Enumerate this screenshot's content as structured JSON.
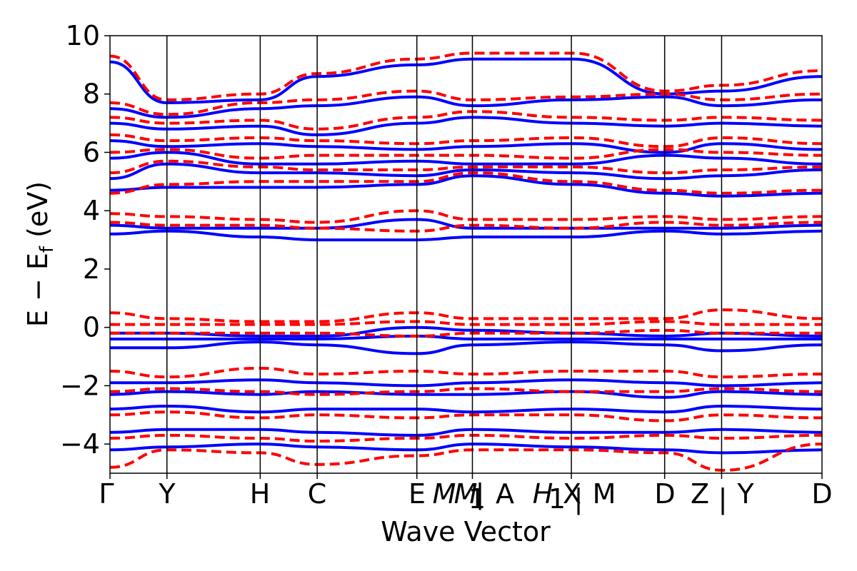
{
  "chart_data": {
    "type": "line",
    "title": "",
    "xlabel": "Wave Vector",
    "ylabel": "E − E_f (eV)",
    "ylabel_parts": {
      "main": "E − E",
      "sub": "f",
      "unit": " (eV)"
    },
    "ylim": [
      -5,
      10
    ],
    "yticks": [
      -4,
      -2,
      0,
      2,
      4,
      6,
      8,
      10
    ],
    "ytick_labels": [
      "−4",
      "−2",
      "0",
      "2",
      "4",
      "6",
      "8",
      "10"
    ],
    "grid": false,
    "legend": "none",
    "colors": {
      "spin_up": "#0000ff",
      "spin_down": "#ff0000"
    },
    "high_symmetry_points": [
      {
        "label": "Γ",
        "x": 0.0
      },
      {
        "label": "Y",
        "x": 0.08
      },
      {
        "label": "H",
        "x": 0.211
      },
      {
        "label": "C",
        "x": 0.291
      },
      {
        "label": "E",
        "x": 0.431
      },
      {
        "label": "M₁|A",
        "x": 0.509
      },
      {
        "label": "H₁",
        "x": 0.648
      },
      {
        "label": "X|M",
        "x": 0.648
      },
      {
        "label": "D",
        "x": 0.779
      },
      {
        "label": "Z|Y",
        "x": 0.859
      },
      {
        "label": "D",
        "x": 1.0
      }
    ],
    "xtick_labels_visible": [
      "Γ",
      "Y",
      "H",
      "C",
      "E",
      "M",
      "M",
      "1",
      "|",
      "A",
      "H",
      "1",
      "X",
      "|",
      "M",
      "D",
      "Z",
      "|",
      "Y",
      "D"
    ],
    "series": [
      {
        "style": "solid",
        "color": "#0000ff",
        "bands": [
          {
            "x": [
              0,
              0.08,
              0.21,
              0.29,
              0.43,
              0.51,
              0.65,
              0.78,
              0.86,
              1.0
            ],
            "y": [
              -4.2,
              -4.1,
              -4.0,
              -4.1,
              -4.2,
              -4.0,
              -4.1,
              -4.2,
              -4.3,
              -4.2
            ]
          },
          {
            "x": [
              0,
              0.08,
              0.21,
              0.29,
              0.43,
              0.51,
              0.65,
              0.78,
              0.86,
              1.0
            ],
            "y": [
              -3.6,
              -3.5,
              -3.5,
              -3.6,
              -3.7,
              -3.5,
              -3.6,
              -3.6,
              -3.5,
              -3.6
            ]
          },
          {
            "x": [
              0,
              0.08,
              0.21,
              0.29,
              0.43,
              0.51,
              0.65,
              0.78,
              0.86,
              1.0
            ],
            "y": [
              -2.8,
              -2.7,
              -2.9,
              -2.8,
              -2.8,
              -2.9,
              -2.8,
              -2.9,
              -2.7,
              -2.8
            ]
          },
          {
            "x": [
              0,
              0.08,
              0.21,
              0.29,
              0.43,
              0.51,
              0.65,
              0.78,
              0.86,
              1.0
            ],
            "y": [
              -2.3,
              -2.2,
              -2.3,
              -2.2,
              -2.3,
              -2.3,
              -2.2,
              -2.4,
              -2.2,
              -2.3
            ]
          },
          {
            "x": [
              0,
              0.08,
              0.21,
              0.29,
              0.43,
              0.51,
              0.65,
              0.78,
              0.86,
              1.0
            ],
            "y": [
              -1.9,
              -1.9,
              -1.8,
              -1.9,
              -2.0,
              -1.9,
              -1.8,
              -1.9,
              -2.0,
              -1.9
            ]
          },
          {
            "x": [
              0,
              0.08,
              0.21,
              0.29,
              0.43,
              0.51,
              0.65,
              0.78,
              0.86,
              1.0
            ],
            "y": [
              -0.7,
              -0.7,
              -0.5,
              -0.6,
              -0.9,
              -0.6,
              -0.5,
              -0.6,
              -0.8,
              -0.6
            ]
          },
          {
            "x": [
              0,
              0.08,
              0.21,
              0.29,
              0.43,
              0.51,
              0.65,
              0.78,
              0.86,
              1.0
            ],
            "y": [
              -0.4,
              -0.4,
              -0.4,
              -0.4,
              -0.3,
              -0.4,
              -0.4,
              -0.4,
              -0.4,
              -0.4
            ]
          },
          {
            "x": [
              0,
              0.08,
              0.21,
              0.29,
              0.43,
              0.51,
              0.65,
              0.78,
              0.86,
              1.0
            ],
            "y": [
              -0.2,
              -0.2,
              -0.3,
              -0.3,
              0.0,
              -0.1,
              -0.2,
              -0.3,
              -0.2,
              -0.3
            ]
          },
          {
            "x": [
              0,
              0.08,
              0.21,
              0.29,
              0.43,
              0.51,
              0.65,
              0.78,
              0.86,
              1.0
            ],
            "y": [
              3.2,
              3.3,
              3.1,
              3.0,
              3.0,
              3.1,
              3.1,
              3.3,
              3.2,
              3.3
            ]
          },
          {
            "x": [
              0,
              0.08,
              0.21,
              0.29,
              0.43,
              0.51,
              0.65,
              0.78,
              0.86,
              1.0
            ],
            "y": [
              3.5,
              3.4,
              3.4,
              3.4,
              3.7,
              3.4,
              3.4,
              3.4,
              3.4,
              3.5
            ]
          },
          {
            "x": [
              0,
              0.08,
              0.21,
              0.29,
              0.43,
              0.51,
              0.65,
              0.78,
              0.86,
              1.0
            ],
            "y": [
              4.7,
              4.8,
              4.8,
              4.8,
              4.9,
              5.2,
              4.9,
              4.6,
              4.5,
              4.6
            ]
          },
          {
            "x": [
              0,
              0.08,
              0.21,
              0.29,
              0.43,
              0.51,
              0.65,
              0.78,
              0.86,
              1.0
            ],
            "y": [
              5.1,
              5.6,
              5.3,
              5.3,
              5.2,
              5.4,
              5.3,
              5.1,
              5.2,
              5.4
            ]
          },
          {
            "x": [
              0,
              0.08,
              0.21,
              0.29,
              0.43,
              0.51,
              0.65,
              0.78,
              0.86,
              1.0
            ],
            "y": [
              5.8,
              6.0,
              5.6,
              5.6,
              5.7,
              5.6,
              5.6,
              5.9,
              5.8,
              5.6
            ]
          },
          {
            "x": [
              0,
              0.08,
              0.21,
              0.29,
              0.43,
              0.51,
              0.65,
              0.78,
              0.86,
              1.0
            ],
            "y": [
              6.4,
              6.2,
              6.3,
              6.2,
              6.1,
              6.2,
              6.3,
              6.0,
              6.3,
              6.1
            ]
          },
          {
            "x": [
              0,
              0.08,
              0.21,
              0.29,
              0.43,
              0.51,
              0.65,
              0.78,
              0.86,
              1.0
            ],
            "y": [
              7.0,
              6.8,
              6.9,
              6.6,
              7.0,
              7.2,
              7.0,
              6.9,
              7.0,
              6.9
            ]
          },
          {
            "x": [
              0,
              0.08,
              0.21,
              0.29,
              0.43,
              0.51,
              0.65,
              0.78,
              0.86,
              1.0
            ],
            "y": [
              7.5,
              7.2,
              7.5,
              7.6,
              7.9,
              7.6,
              7.8,
              7.9,
              7.6,
              7.8
            ]
          },
          {
            "x": [
              0,
              0.08,
              0.21,
              0.29,
              0.43,
              0.51,
              0.65,
              0.78,
              0.86,
              1.0
            ],
            "y": [
              9.1,
              7.7,
              7.8,
              8.6,
              9.0,
              9.2,
              9.2,
              8.0,
              8.1,
              8.6
            ]
          }
        ]
      },
      {
        "style": "dashed",
        "color": "#ff0000",
        "bands": [
          {
            "x": [
              0,
              0.08,
              0.21,
              0.29,
              0.43,
              0.51,
              0.65,
              0.78,
              0.86,
              1.0
            ],
            "y": [
              -4.8,
              -4.2,
              -4.3,
              -4.7,
              -4.4,
              -4.2,
              -4.2,
              -4.3,
              -4.9,
              -4.0
            ]
          },
          {
            "x": [
              0,
              0.08,
              0.21,
              0.29,
              0.43,
              0.51,
              0.65,
              0.78,
              0.86,
              1.0
            ],
            "y": [
              -3.8,
              -3.7,
              -3.8,
              -3.9,
              -3.8,
              -3.7,
              -3.8,
              -3.7,
              -3.8,
              -3.7
            ]
          },
          {
            "x": [
              0,
              0.08,
              0.21,
              0.29,
              0.43,
              0.51,
              0.65,
              0.78,
              0.86,
              1.0
            ],
            "y": [
              -3.0,
              -2.9,
              -3.1,
              -3.0,
              -3.1,
              -3.0,
              -3.0,
              -3.2,
              -3.0,
              -3.1
            ]
          },
          {
            "x": [
              0,
              0.08,
              0.21,
              0.29,
              0.43,
              0.51,
              0.65,
              0.78,
              0.86,
              1.0
            ],
            "y": [
              -2.2,
              -2.1,
              -2.2,
              -2.3,
              -2.2,
              -2.1,
              -2.2,
              -2.2,
              -2.1,
              -2.2
            ]
          },
          {
            "x": [
              0,
              0.08,
              0.21,
              0.29,
              0.43,
              0.51,
              0.65,
              0.78,
              0.86,
              1.0
            ],
            "y": [
              -1.5,
              -1.7,
              -1.4,
              -1.6,
              -1.5,
              -1.6,
              -1.5,
              -1.5,
              -1.7,
              -1.6
            ]
          },
          {
            "x": [
              0,
              0.08,
              0.21,
              0.29,
              0.43,
              0.51,
              0.65,
              0.78,
              0.86,
              1.0
            ],
            "y": [
              -0.2,
              -0.2,
              -0.2,
              -0.2,
              -0.3,
              -0.2,
              -0.2,
              -0.1,
              -0.2,
              -0.2
            ]
          },
          {
            "x": [
              0,
              0.08,
              0.21,
              0.29,
              0.43,
              0.51,
              0.65,
              0.78,
              0.86,
              1.0
            ],
            "y": [
              0.1,
              0.1,
              0.1,
              0.1,
              0.2,
              0.1,
              0.1,
              0.2,
              0.1,
              0.1
            ]
          },
          {
            "x": [
              0,
              0.08,
              0.21,
              0.29,
              0.43,
              0.51,
              0.65,
              0.78,
              0.86,
              1.0
            ],
            "y": [
              0.5,
              0.3,
              0.2,
              0.2,
              0.5,
              0.3,
              0.3,
              0.3,
              0.6,
              0.3
            ]
          },
          {
            "x": [
              0,
              0.08,
              0.21,
              0.29,
              0.43,
              0.51,
              0.65,
              0.78,
              0.86,
              1.0
            ],
            "y": [
              3.6,
              3.5,
              3.5,
              3.4,
              3.3,
              3.5,
              3.4,
              3.6,
              3.5,
              3.6
            ]
          },
          {
            "x": [
              0,
              0.08,
              0.21,
              0.29,
              0.43,
              0.51,
              0.65,
              0.78,
              0.86,
              1.0
            ],
            "y": [
              3.9,
              3.8,
              3.7,
              3.6,
              4.0,
              3.7,
              3.7,
              3.8,
              3.7,
              3.8
            ]
          },
          {
            "x": [
              0,
              0.08,
              0.21,
              0.29,
              0.43,
              0.51,
              0.65,
              0.78,
              0.86,
              1.0
            ],
            "y": [
              4.6,
              4.9,
              5.0,
              5.0,
              5.0,
              5.3,
              5.0,
              4.7,
              4.6,
              4.7
            ]
          },
          {
            "x": [
              0,
              0.08,
              0.21,
              0.29,
              0.43,
              0.51,
              0.65,
              0.78,
              0.86,
              1.0
            ],
            "y": [
              5.3,
              5.7,
              5.5,
              5.4,
              5.4,
              5.5,
              5.5,
              5.3,
              5.4,
              5.5
            ]
          },
          {
            "x": [
              0,
              0.08,
              0.21,
              0.29,
              0.43,
              0.51,
              0.65,
              0.78,
              0.86,
              1.0
            ],
            "y": [
              6.0,
              6.1,
              5.8,
              5.9,
              5.9,
              5.9,
              5.8,
              6.1,
              6.0,
              5.9
            ]
          },
          {
            "x": [
              0,
              0.08,
              0.21,
              0.29,
              0.43,
              0.51,
              0.65,
              0.78,
              0.86,
              1.0
            ],
            "y": [
              6.6,
              6.4,
              6.5,
              6.4,
              6.3,
              6.4,
              6.5,
              6.2,
              6.5,
              6.3
            ]
          },
          {
            "x": [
              0,
              0.08,
              0.21,
              0.29,
              0.43,
              0.51,
              0.65,
              0.78,
              0.86,
              1.0
            ],
            "y": [
              7.2,
              7.0,
              7.1,
              6.8,
              7.2,
              7.4,
              7.2,
              7.1,
              7.2,
              7.1
            ]
          },
          {
            "x": [
              0,
              0.08,
              0.21,
              0.29,
              0.43,
              0.51,
              0.65,
              0.78,
              0.86,
              1.0
            ],
            "y": [
              7.7,
              7.3,
              7.7,
              7.8,
              8.1,
              7.8,
              7.9,
              8.0,
              7.8,
              8.0
            ]
          },
          {
            "x": [
              0,
              0.08,
              0.21,
              0.29,
              0.43,
              0.51,
              0.65,
              0.78,
              0.86,
              1.0
            ],
            "y": [
              9.3,
              7.8,
              8.0,
              8.7,
              9.2,
              9.4,
              9.4,
              8.1,
              8.3,
              8.8
            ]
          }
        ]
      }
    ]
  }
}
